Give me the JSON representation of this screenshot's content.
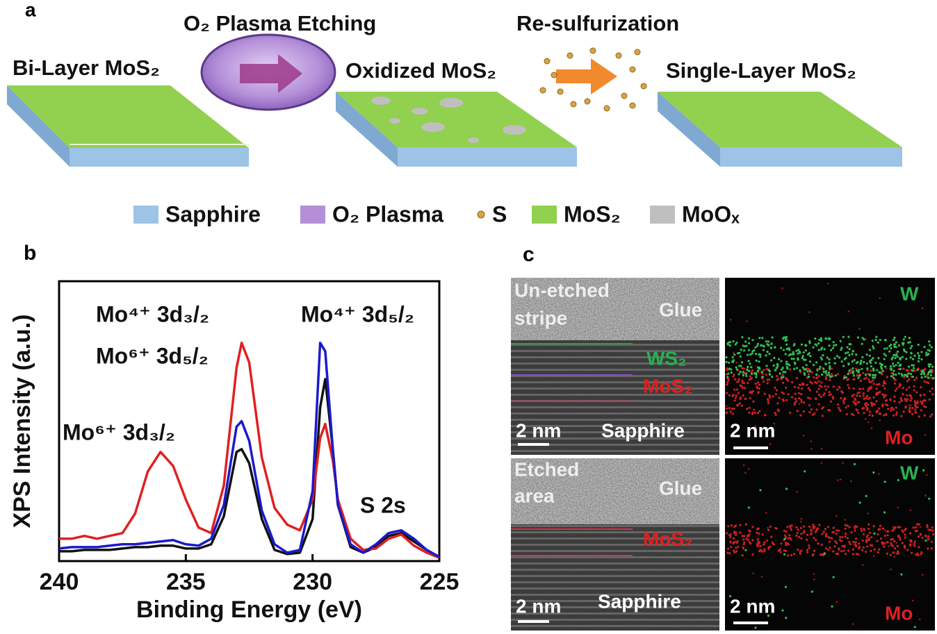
{
  "panel_labels": [
    "a",
    "b",
    "c"
  ],
  "schematic": {
    "steps": [
      "Bi-Layer MoS₂",
      "Oxidized MoS₂",
      "Single-Layer MoS₂"
    ],
    "processes": [
      "O₂ Plasma Etching",
      "Re-sulfurization"
    ],
    "legend": [
      {
        "name": "Sapphire",
        "color": "#9dc3e6"
      },
      {
        "name": "O₂ Plasma",
        "color": "#b48fd8"
      },
      {
        "name": "S",
        "color": "#d9a441"
      },
      {
        "name": "MoS₂",
        "color": "#92d050"
      },
      {
        "name": "MoOₓ",
        "color": "#bfbfbf"
      }
    ]
  },
  "chart_data": {
    "type": "line",
    "xlabel": "Binding Energy (eV)",
    "ylabel": "XPS Intensity (a.u.)",
    "xlim": [
      240,
      225
    ],
    "xticks": [
      240,
      235,
      230,
      225
    ],
    "ylim": [
      0,
      10
    ],
    "annotations": [
      "Mo⁴⁺ 3d₃/₂",
      "Mo⁶⁺ 3d₅/₂",
      "Mo⁴⁺ 3d₅/₂",
      "Mo⁶⁺ 3d₃/₂",
      "S 2s"
    ],
    "x": [
      240,
      239.5,
      239,
      238.5,
      238,
      237.5,
      237,
      236.5,
      236,
      235.5,
      235,
      234.5,
      234,
      233.5,
      233,
      232.8,
      232.5,
      232,
      231.5,
      231,
      230.5,
      230,
      229.7,
      229.5,
      229.2,
      229,
      228.5,
      228,
      227.5,
      227,
      226.5,
      226,
      225.5,
      225
    ],
    "series": [
      {
        "color": "#111111",
        "values": [
          0.35,
          0.35,
          0.4,
          0.4,
          0.4,
          0.45,
          0.5,
          0.5,
          0.55,
          0.55,
          0.45,
          0.45,
          0.6,
          1.6,
          3.9,
          4.0,
          3.5,
          1.5,
          0.4,
          0.25,
          0.3,
          1.5,
          5.5,
          6.5,
          4.0,
          2.0,
          0.5,
          0.3,
          0.5,
          0.9,
          1.0,
          0.7,
          0.4,
          0.15
        ]
      },
      {
        "color": "#e02020",
        "values": [
          0.8,
          0.8,
          0.9,
          0.8,
          0.9,
          1.0,
          1.7,
          3.2,
          3.9,
          3.4,
          2.2,
          1.2,
          1.0,
          2.7,
          6.9,
          7.8,
          7.1,
          3.7,
          1.9,
          1.3,
          1.1,
          2.2,
          4.4,
          4.9,
          3.6,
          2.2,
          0.8,
          0.4,
          0.45,
          0.8,
          0.95,
          0.55,
          0.3,
          0.12
        ]
      },
      {
        "color": "#1a1acc",
        "values": [
          0.45,
          0.5,
          0.5,
          0.5,
          0.55,
          0.6,
          0.6,
          0.65,
          0.7,
          0.75,
          0.6,
          0.55,
          0.8,
          2.0,
          4.8,
          5.0,
          4.3,
          1.8,
          0.6,
          0.3,
          0.4,
          2.5,
          7.8,
          7.5,
          4.0,
          2.0,
          0.6,
          0.3,
          0.6,
          1.0,
          1.1,
          0.8,
          0.4,
          0.15
        ]
      }
    ]
  },
  "tem": {
    "top": {
      "image": [
        "Un-etched",
        "stripe",
        "Glue",
        "WS₂",
        "MoS₂",
        "2 nm",
        "Sapphire"
      ],
      "map": [
        "W",
        "2 nm",
        "Mo"
      ]
    },
    "bottom": {
      "image": [
        "Etched",
        "area",
        "Glue",
        "MoS₂",
        "2 nm",
        "Sapphire"
      ],
      "map": [
        "W",
        "2 nm",
        "Mo"
      ]
    }
  }
}
